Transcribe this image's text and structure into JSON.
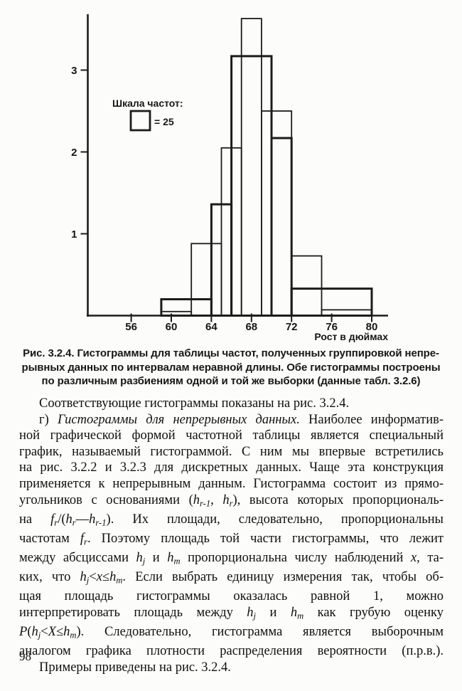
{
  "page": {
    "number": "98"
  },
  "chart_data": {
    "type": "histogram",
    "title": "",
    "xlabel": "Рост в дюймах",
    "ylabel": "",
    "x_ticks": [
      56,
      60,
      64,
      68,
      72,
      76,
      80
    ],
    "y_ticks": [
      1,
      2,
      3
    ],
    "xlim": [
      51.6,
      81.6
    ],
    "ylim": [
      0,
      3.75
    ],
    "grid": false,
    "legend": {
      "title": "Шкала частот:",
      "unit_label": "= 25",
      "unit_value": 25,
      "position": "upper-left"
    },
    "series": [
      {
        "name": "histogram-partition-1-thin",
        "style": "thin",
        "bins": [
          {
            "from": 59,
            "to": 62,
            "h": 0.05
          },
          {
            "from": 62,
            "to": 65,
            "h": 0.88
          },
          {
            "from": 65,
            "to": 67,
            "h": 2.05
          },
          {
            "from": 67,
            "to": 69,
            "h": 3.63
          },
          {
            "from": 69,
            "to": 72,
            "h": 2.5
          },
          {
            "from": 72,
            "to": 75,
            "h": 0.73
          },
          {
            "from": 75,
            "to": 80,
            "h": 0.07
          }
        ]
      },
      {
        "name": "histogram-partition-2-thick",
        "style": "thick",
        "bins": [
          {
            "from": 59,
            "to": 64,
            "h": 0.2
          },
          {
            "from": 64,
            "to": 66,
            "h": 1.36
          },
          {
            "from": 66,
            "to": 70,
            "h": 3.17
          },
          {
            "from": 70,
            "to": 72,
            "h": 2.17
          },
          {
            "from": 72,
            "to": 80,
            "h": 0.33
          }
        ]
      }
    ]
  },
  "figure_caption": {
    "lines": [
      "Рис. 3.2.4. Гистограммы для таблицы частот, полученных группировкой непре-",
      "рывных данных по интервалам неравной длины. Обе гистограммы построены",
      "по различным разбиениям одной и той же выборки (данные табл. 3.2.6)"
    ]
  },
  "body": {
    "lines": [
      {
        "indent": true,
        "justify": false,
        "segments": [
          {
            "t": "Соответствующие гистограммы показаны на рис. 3.2.4."
          }
        ]
      },
      {
        "indent": true,
        "justify": true,
        "segments": [
          {
            "t": "г) "
          },
          {
            "t": "Гистограммы для непрерывных данных.",
            "i": true
          },
          {
            "t": " Наиболее информатив-"
          }
        ]
      },
      {
        "indent": false,
        "justify": true,
        "segments": [
          {
            "t": "ной графической формой частотной таблицы является специальный"
          }
        ]
      },
      {
        "indent": false,
        "justify": true,
        "segments": [
          {
            "t": "график, называемый гистограммой. С ним мы впервые встретились"
          }
        ]
      },
      {
        "indent": false,
        "justify": true,
        "segments": [
          {
            "t": "на рис. 3.2.2 и 3.2.3 для дискретных данных. Чаще эта конструкция"
          }
        ]
      },
      {
        "indent": false,
        "justify": true,
        "segments": [
          {
            "t": "применяется к непрерывным данным. Гистограмма состоит из прямо-"
          }
        ]
      },
      {
        "indent": false,
        "justify": true,
        "segments": [
          {
            "t": "угольников с основаниями ("
          },
          {
            "t": "h",
            "i": true
          },
          {
            "t": "r-1",
            "sub": true
          },
          {
            "t": ", "
          },
          {
            "t": "h",
            "i": true
          },
          {
            "t": "r",
            "sub": true
          },
          {
            "t": "), высота которых пропорциональ-"
          }
        ]
      },
      {
        "indent": false,
        "justify": true,
        "segments": [
          {
            "t": "на "
          },
          {
            "t": "f",
            "i": true
          },
          {
            "t": "r",
            "sub": true
          },
          {
            "t": "/("
          },
          {
            "t": "h",
            "i": true
          },
          {
            "t": "r",
            "sub": true
          },
          {
            "t": "—"
          },
          {
            "t": "h",
            "i": true
          },
          {
            "t": "r-1",
            "sub": true
          },
          {
            "t": "). Их площади, следовательно, пропорциональны"
          }
        ]
      },
      {
        "indent": false,
        "justify": true,
        "segments": [
          {
            "t": "частотам "
          },
          {
            "t": "f",
            "i": true
          },
          {
            "t": "r",
            "sub": true
          },
          {
            "t": ". Поэтому площадь той части гистограммы, что лежит"
          }
        ]
      },
      {
        "indent": false,
        "justify": true,
        "segments": [
          {
            "t": "между абсциссами "
          },
          {
            "t": "h",
            "i": true
          },
          {
            "t": "j",
            "sub": true
          },
          {
            "t": " и "
          },
          {
            "t": "h",
            "i": true
          },
          {
            "t": "m",
            "sub": true
          },
          {
            "t": " пропорциональна числу наблюдений "
          },
          {
            "t": "x",
            "i": true
          },
          {
            "t": ", та-"
          }
        ]
      },
      {
        "indent": false,
        "justify": true,
        "segments": [
          {
            "t": "ких, что "
          },
          {
            "t": "h",
            "i": true
          },
          {
            "t": "j",
            "sub": true
          },
          {
            "t": "<"
          },
          {
            "t": "x",
            "i": true
          },
          {
            "t": "≤"
          },
          {
            "t": "h",
            "i": true
          },
          {
            "t": "m",
            "sub": true
          },
          {
            "t": ". Если выбрать единицу измерения так, чтобы об-"
          }
        ]
      },
      {
        "indent": false,
        "justify": true,
        "segments": [
          {
            "t": "щая площадь гистограммы оказалась равной 1, можно"
          }
        ]
      },
      {
        "indent": false,
        "justify": true,
        "segments": [
          {
            "t": "интерпретировать площадь между "
          },
          {
            "t": "h",
            "i": true
          },
          {
            "t": "j",
            "sub": true
          },
          {
            "t": " и "
          },
          {
            "t": "h",
            "i": true
          },
          {
            "t": "m",
            "sub": true
          },
          {
            "t": " как грубую оценку"
          }
        ]
      },
      {
        "indent": false,
        "justify": true,
        "segments": [
          {
            "t": "P",
            "i": true
          },
          {
            "t": "("
          },
          {
            "t": "h",
            "i": true
          },
          {
            "t": "j",
            "sub": true
          },
          {
            "t": "<"
          },
          {
            "t": "X",
            "i": true
          },
          {
            "t": "≤"
          },
          {
            "t": "h",
            "i": true
          },
          {
            "t": "m",
            "sub": true
          },
          {
            "t": "). Следовательно, гистограмма является выборочным"
          }
        ]
      },
      {
        "indent": false,
        "justify": true,
        "segments": [
          {
            "t": "аналогом графика плотности распределения вероятности (п.р.в.)."
          }
        ]
      },
      {
        "indent": true,
        "justify": false,
        "segments": [
          {
            "t": "Примеры приведены на рис. 3.2.4."
          }
        ]
      }
    ]
  }
}
